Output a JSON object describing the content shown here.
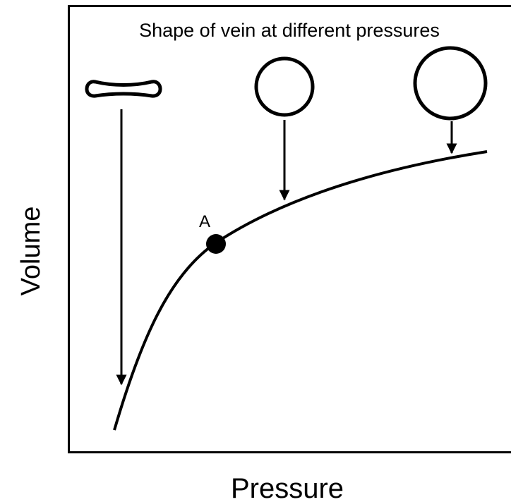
{
  "title": "Shape of vein at different pressures",
  "x_label": "Pressure",
  "y_label": "Volume",
  "point_label": "A"
}
